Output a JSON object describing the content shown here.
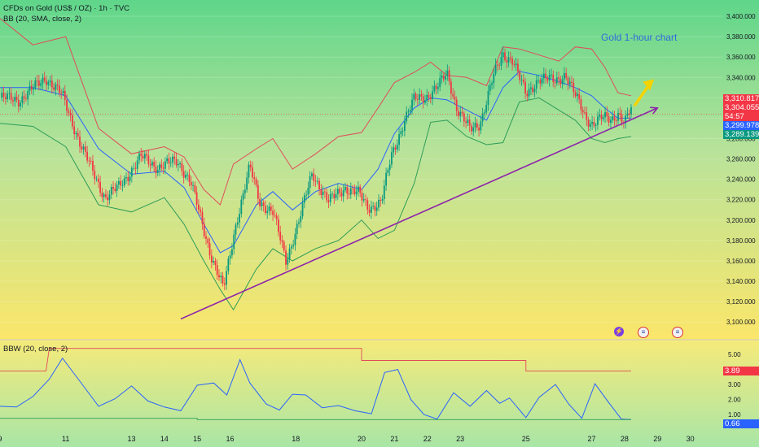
{
  "header": {
    "symbol": "CFDs on Gold (US$ / OZ) · 1h · TVC",
    "indicator": "BB (20, SMA, close, 2)"
  },
  "annotation": {
    "text": "Gold 1-hour chart"
  },
  "subpane": {
    "label": "BBW (20, close, 2)",
    "tags": [
      {
        "text": "3.89"
      },
      {
        "text": "0.66"
      }
    ]
  },
  "price_tags": [
    {
      "text": "3,310.817"
    },
    {
      "text": "3,304.055"
    },
    {
      "text": "54:57"
    },
    {
      "text": "3,299.978"
    },
    {
      "text": "3,289.139"
    }
  ],
  "colors": {
    "up": "#089981",
    "down": "#f23645",
    "upper_band": "#e24a5a",
    "basis": "#2962ff",
    "lower_band": "#2e9c58",
    "trendline": "#8e24aa",
    "highlight": "#f5d300"
  },
  "chart_data": [
    {
      "type": "candlestick",
      "title": "CFDs on Gold (US$ / OZ) · 1h · TVC",
      "price_axis": [
        3100,
        3120,
        3140,
        3160,
        3180,
        3200,
        3220,
        3240,
        3260,
        3280,
        3300,
        3320,
        3340,
        3360,
        3380,
        3400
      ],
      "ylim": [
        3085,
        3412
      ],
      "xlim_days": [
        9,
        31
      ],
      "x_ticks": [
        "9",
        "11",
        "13",
        "14",
        "15",
        "16",
        "18",
        "20",
        "21",
        "22",
        "23",
        "25",
        "27",
        "28",
        "29",
        "30"
      ],
      "x_tick_days": [
        9,
        11,
        13,
        14,
        15,
        16,
        18,
        20,
        21,
        22,
        23,
        25,
        27,
        28,
        29,
        30
      ],
      "close_path": {
        "day": [
          9.0,
          9.6,
          10.4,
          10.9,
          11.5,
          12.2,
          12.6,
          13.3,
          13.8,
          14.4,
          14.8,
          15.2,
          15.4,
          15.8,
          16.2,
          16.6,
          16.9,
          17.3,
          17.7,
          18.1,
          18.5,
          19.0,
          19.5,
          19.9,
          20.2,
          20.6,
          20.9,
          21.3,
          21.6,
          22.0,
          22.3,
          22.6,
          22.9,
          23.3,
          23.6,
          24.0,
          24.3,
          24.6,
          25.0,
          25.4,
          25.9,
          26.2,
          26.5,
          26.8,
          27.0,
          27.3,
          27.6,
          27.8,
          28.0,
          28.2
        ],
        "close": [
          3320,
          3318,
          3340,
          3322,
          3270,
          3222,
          3232,
          3262,
          3252,
          3258,
          3238,
          3190,
          3168,
          3132,
          3200,
          3252,
          3218,
          3208,
          3160,
          3200,
          3246,
          3218,
          3232,
          3226,
          3212,
          3218,
          3262,
          3298,
          3318,
          3322,
          3330,
          3344,
          3310,
          3288,
          3295,
          3340,
          3362,
          3358,
          3322,
          3340,
          3336,
          3344,
          3322,
          3302,
          3295,
          3300,
          3298,
          3306,
          3296,
          3308
        ]
      },
      "bollinger": {
        "day": [
          9.0,
          10.0,
          11.0,
          12.0,
          13.0,
          14.0,
          14.6,
          15.2,
          15.7,
          16.1,
          16.8,
          17.3,
          17.9,
          18.6,
          19.3,
          20.0,
          20.5,
          21.0,
          21.6,
          22.1,
          22.6,
          23.2,
          23.8,
          24.3,
          24.8,
          25.4,
          26.0,
          26.5,
          27.0,
          27.4,
          27.8,
          28.2
        ],
        "upper": [
          3398,
          3372,
          3380,
          3290,
          3265,
          3272,
          3262,
          3230,
          3215,
          3255,
          3270,
          3280,
          3250,
          3265,
          3282,
          3286,
          3310,
          3335,
          3345,
          3355,
          3342,
          3340,
          3332,
          3370,
          3368,
          3362,
          3356,
          3370,
          3368,
          3350,
          3325,
          3322
        ],
        "basis": [
          3330,
          3330,
          3322,
          3270,
          3245,
          3248,
          3232,
          3196,
          3168,
          3175,
          3215,
          3228,
          3210,
          3228,
          3236,
          3230,
          3250,
          3285,
          3310,
          3320,
          3318,
          3308,
          3298,
          3330,
          3346,
          3342,
          3336,
          3330,
          3322,
          3310,
          3300,
          3300
        ],
        "lower": [
          3295,
          3292,
          3272,
          3215,
          3208,
          3222,
          3196,
          3160,
          3132,
          3112,
          3152,
          3172,
          3160,
          3172,
          3180,
          3200,
          3182,
          3190,
          3236,
          3296,
          3298,
          3282,
          3274,
          3276,
          3316,
          3320,
          3308,
          3298,
          3280,
          3276,
          3280,
          3282
        ]
      },
      "trendline": {
        "from": {
          "day": 14.5,
          "price": 3103
        },
        "to": {
          "day": 29.0,
          "price": 3310
        }
      },
      "price_line": 3304.055,
      "current_labels": {
        "upper": 3310.817,
        "close": 3304.055,
        "basis": 3299.978,
        "lower": 3289.139
      }
    },
    {
      "type": "line",
      "title": "BBW (20, close, 2)",
      "y_ticks": [
        1.0,
        2.0,
        3.0,
        5.0
      ],
      "ylim": [
        0.3,
        5.6
      ],
      "series": [
        {
          "name": "BBW",
          "day": [
            9.0,
            9.5,
            10.0,
            10.5,
            10.9,
            11.4,
            12.0,
            12.5,
            13.0,
            13.5,
            14.0,
            14.5,
            15.0,
            15.5,
            15.9,
            16.3,
            16.6,
            17.1,
            17.5,
            17.9,
            18.3,
            18.8,
            19.3,
            19.8,
            20.3,
            20.7,
            21.1,
            21.5,
            21.9,
            22.3,
            22.8,
            23.3,
            23.8,
            24.2,
            24.5,
            25.0,
            25.4,
            25.9,
            26.3,
            26.7,
            27.1,
            27.5,
            27.9,
            28.2
          ],
          "value": [
            1.55,
            1.5,
            2.2,
            3.35,
            4.75,
            3.3,
            1.55,
            2.05,
            2.9,
            1.9,
            1.5,
            1.25,
            2.95,
            3.1,
            2.3,
            4.65,
            3.1,
            1.7,
            1.3,
            2.35,
            2.3,
            1.45,
            1.6,
            1.25,
            1.05,
            3.8,
            4.0,
            2.0,
            1.0,
            0.7,
            2.45,
            1.55,
            2.6,
            1.75,
            2.1,
            0.8,
            2.15,
            3.0,
            1.7,
            0.75,
            3.05,
            1.85,
            0.7,
            0.66
          ]
        },
        {
          "name": "BBW upper",
          "day": [
            9.0,
            10.4,
            10.5,
            15.0,
            15.0,
            20.0,
            20.0,
            25.0,
            25.0,
            28.2
          ],
          "value": [
            3.89,
            3.89,
            5.4,
            5.4,
            5.4,
            5.4,
            4.6,
            4.6,
            3.89,
            3.89
          ]
        },
        {
          "name": "BBW lower",
          "day": [
            9.0,
            15.0,
            15.0,
            28.2
          ],
          "value": [
            0.75,
            0.75,
            0.66,
            0.66
          ]
        }
      ]
    }
  ]
}
